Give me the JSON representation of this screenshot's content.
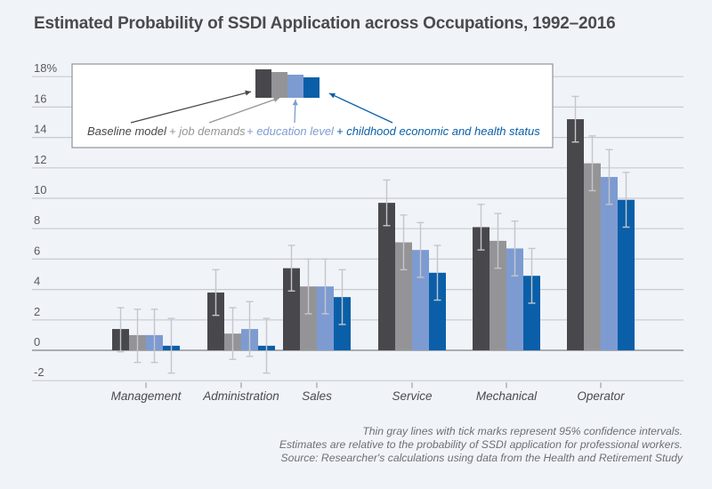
{
  "chart_data": {
    "type": "bar",
    "title": "Estimated Probability of SSDI Application across Occupations, 1992–2016",
    "xlabel": "",
    "ylabel": "",
    "ylim": [
      -2,
      18
    ],
    "yticks": [
      -2,
      0,
      2,
      4,
      6,
      8,
      10,
      12,
      14,
      16,
      18
    ],
    "ytick_labels": [
      "-2",
      "0",
      "2",
      "4",
      "6",
      "8",
      "10",
      "12",
      "14",
      "16",
      "18%"
    ],
    "grid": true,
    "legend_placement": "top-left inset",
    "categories": [
      "Management",
      "Administration",
      "Sales",
      "Service",
      "Mechanical",
      "Operator"
    ],
    "series": [
      {
        "name": "Baseline model",
        "legend_label": "Baseline model",
        "color": "#48484c",
        "values": [
          1.4,
          3.8,
          5.4,
          9.7,
          8.1,
          15.2
        ],
        "ci_low": [
          -0.1,
          2.3,
          3.9,
          8.2,
          6.6,
          13.7
        ],
        "ci_high": [
          2.8,
          5.3,
          6.9,
          11.2,
          9.6,
          16.7
        ]
      },
      {
        "name": "+ job demands",
        "legend_label": "+ job demands",
        "color": "#949497",
        "values": [
          1.0,
          1.1,
          4.2,
          7.1,
          7.2,
          12.3
        ],
        "ci_low": [
          -0.8,
          -0.6,
          2.4,
          5.3,
          5.4,
          10.5
        ],
        "ci_high": [
          2.7,
          2.8,
          6.0,
          8.9,
          9.0,
          14.1
        ]
      },
      {
        "name": "+ education level",
        "legend_label": "+ education level",
        "color": "#7d9bd1",
        "values": [
          1.0,
          1.4,
          4.2,
          6.6,
          6.7,
          11.4
        ],
        "ci_low": [
          -0.8,
          -0.4,
          2.4,
          4.8,
          4.9,
          9.6
        ],
        "ci_high": [
          2.7,
          3.2,
          6.0,
          8.4,
          8.5,
          13.2
        ]
      },
      {
        "name": "+ childhood economic and health status",
        "legend_label": "+ childhood economic and health status",
        "color": "#0a5fa8",
        "values": [
          0.3,
          0.3,
          3.5,
          5.1,
          4.9,
          9.9
        ],
        "ci_low": [
          -1.5,
          -1.5,
          1.7,
          3.3,
          3.1,
          8.1
        ],
        "ci_high": [
          2.1,
          2.1,
          5.3,
          6.9,
          6.7,
          11.7
        ]
      }
    ],
    "legend_example_values": [
      18,
      17.7,
      17.4,
      17.1
    ],
    "notes": [
      "Thin gray lines with tick marks represent 95% confidence intervals.",
      "Estimates are relative to the probability of SSDI application for professional workers.",
      "Source: Researcher's calculations using data from the Health and Retirement Study"
    ]
  },
  "colors": {
    "background": "#f0f4f9",
    "gridline": "#c7cbd1",
    "ci_line": "#c4c6ca",
    "axis_text": "#58585c"
  }
}
